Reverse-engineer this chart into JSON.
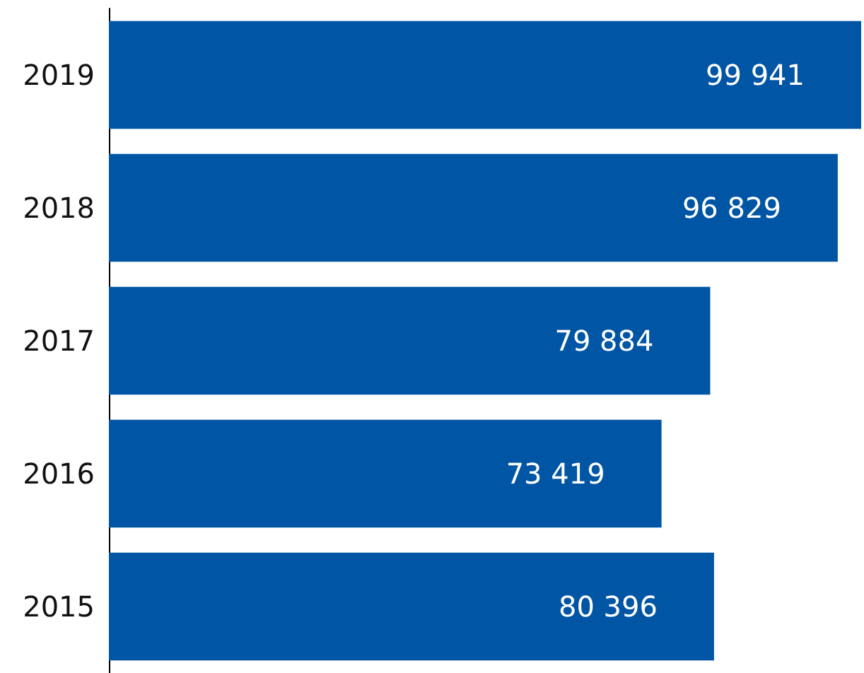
{
  "chart_data": {
    "type": "bar",
    "orientation": "horizontal",
    "categories": [
      "2019",
      "2018",
      "2017",
      "2016",
      "2015"
    ],
    "values": [
      99941,
      96829,
      79884,
      73419,
      80396
    ],
    "value_labels": [
      "99 941",
      "96 829",
      "79 884",
      "73 419",
      "80 396"
    ],
    "color": "#0055a4"
  }
}
